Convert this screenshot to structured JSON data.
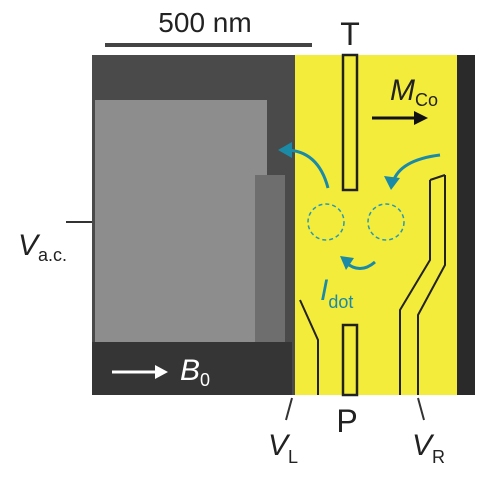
{
  "scale_bar": "500 nm",
  "labels": {
    "top_gate": "T",
    "magnetization": {
      "symbol": "M",
      "subscript": "Co"
    },
    "ac_voltage": {
      "symbol": "V",
      "subscript": "a.c."
    },
    "field": {
      "symbol": "B",
      "subscript": "0"
    },
    "current": {
      "symbol": "I",
      "subscript": "dot"
    },
    "left_gate": {
      "symbol": "V",
      "subscript": "L"
    },
    "plunger": "P",
    "right_gate": {
      "symbol": "V",
      "subscript": "R"
    }
  }
}
